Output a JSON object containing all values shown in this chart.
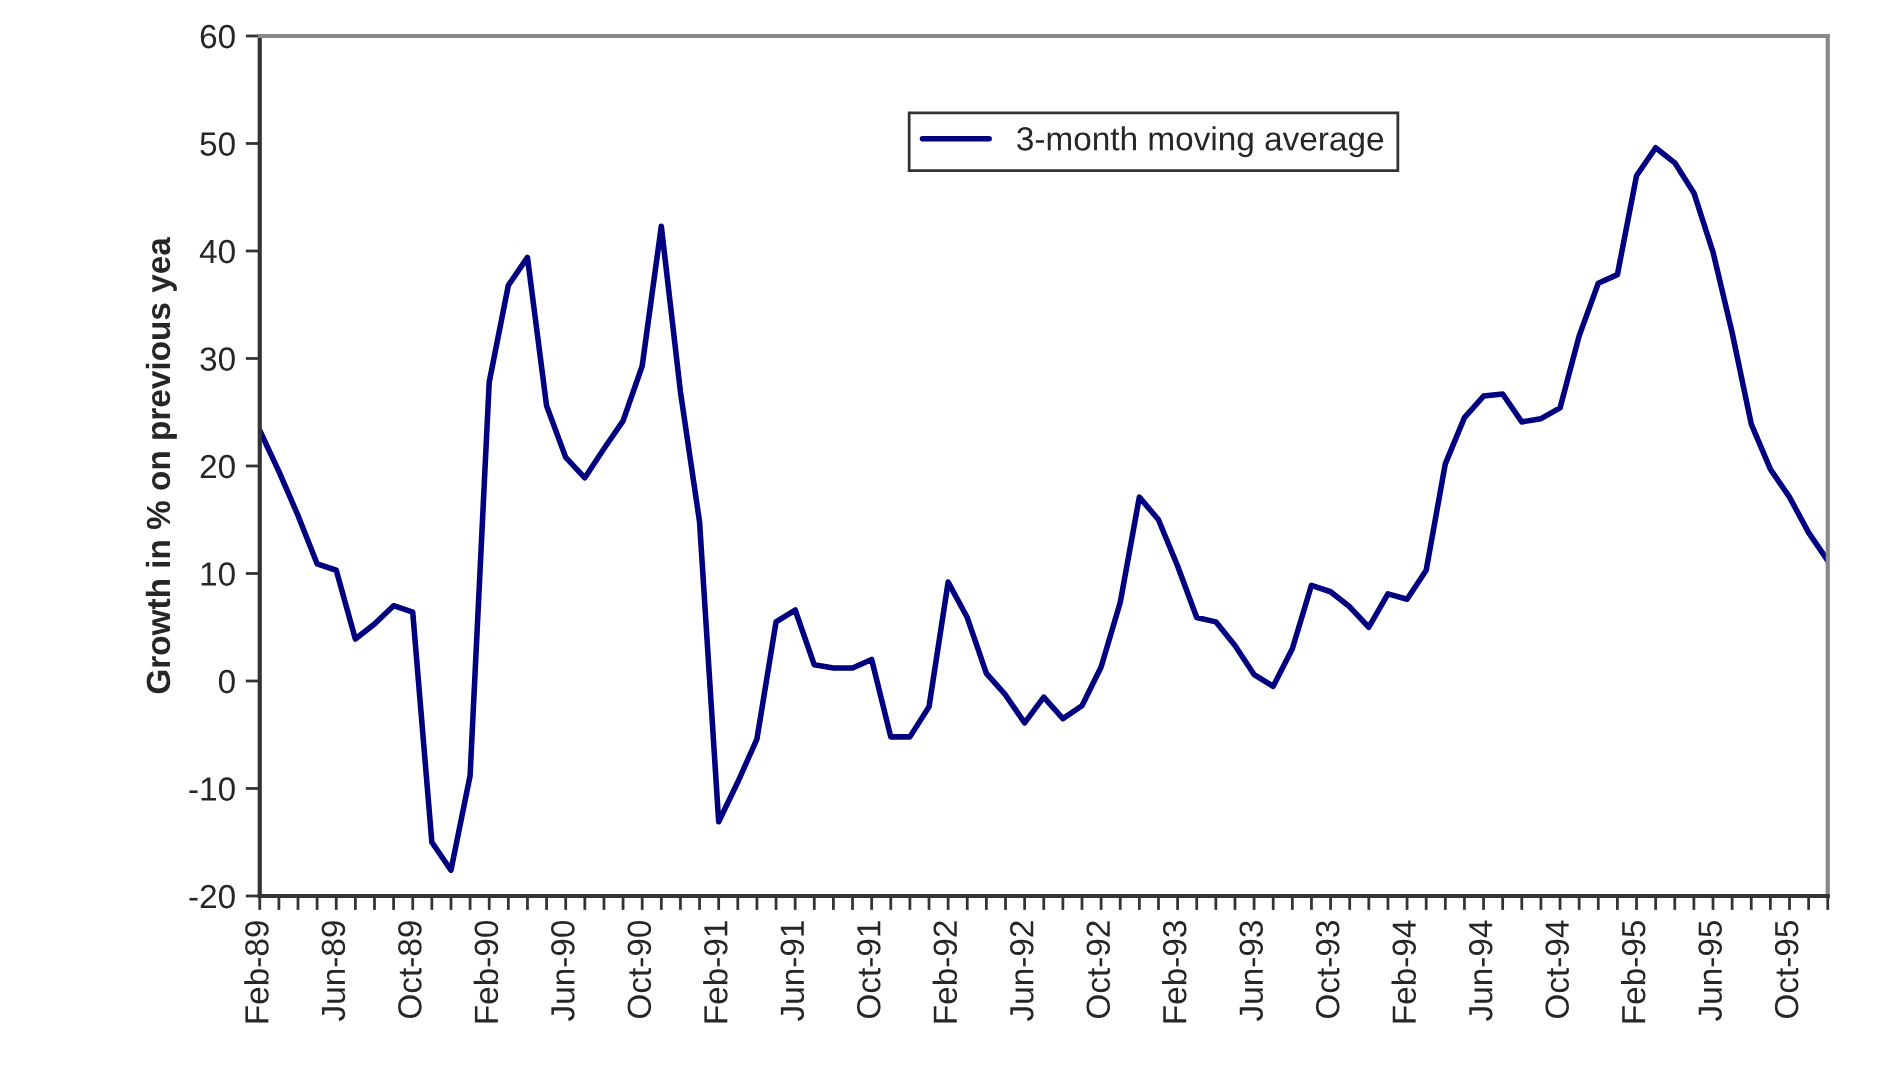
{
  "chart_data": {
    "type": "line",
    "ylabel": "Growth in % on previous yea",
    "categories": [
      "Feb-89",
      null,
      null,
      null,
      "Jun-89",
      null,
      null,
      null,
      "Oct-89",
      null,
      null,
      null,
      "Feb-90",
      null,
      null,
      null,
      "Jun-90",
      null,
      null,
      null,
      "Oct-90",
      null,
      null,
      null,
      "Feb-91",
      null,
      null,
      null,
      "Jun-91",
      null,
      null,
      null,
      "Oct-91",
      null,
      null,
      null,
      "Feb-92",
      null,
      null,
      null,
      "Jun-92",
      null,
      null,
      null,
      "Oct-92",
      null,
      null,
      null,
      "Feb-93",
      null,
      null,
      null,
      "Jun-93",
      null,
      null,
      null,
      "Oct-93",
      null,
      null,
      null,
      "Feb-94",
      null,
      null,
      null,
      "Jun-94",
      null,
      null,
      null,
      "Oct-94",
      null,
      null,
      null,
      "Feb-95",
      null,
      null,
      null,
      "Jun-95",
      null,
      null,
      null,
      "Oct-95",
      null,
      null
    ],
    "series": [
      {
        "name": "3-month moving average",
        "color": "#000080",
        "values": [
          23.3,
          19.5,
          15.4,
          10.9,
          10.3,
          3.9,
          5.3,
          7.0,
          6.4,
          -15.0,
          -17.6,
          -8.8,
          27.8,
          36.8,
          39.4,
          25.6,
          20.8,
          18.9,
          21.6,
          24.2,
          29.3,
          42.3,
          26.9,
          14.8,
          -13.1,
          -9.4,
          -5.4,
          5.5,
          6.6,
          1.5,
          1.2,
          1.2,
          2.0,
          -5.2,
          -5.2,
          -2.4,
          9.2,
          5.9,
          0.7,
          -1.3,
          -3.9,
          -1.5,
          -3.5,
          -2.3,
          1.3,
          7.3,
          17.1,
          15.0,
          10.7,
          5.9,
          5.5,
          3.3,
          0.6,
          -0.5,
          3.0,
          8.9,
          8.3,
          6.9,
          5.0,
          8.1,
          7.6,
          10.3,
          20.2,
          24.5,
          26.5,
          26.7,
          24.1,
          24.4,
          25.4,
          32.1,
          37.0,
          37.8,
          47.0,
          49.6,
          48.2,
          45.4,
          39.9,
          32.4,
          23.9,
          19.7,
          17.1,
          13.8,
          11.2
        ]
      }
    ],
    "ylim": [
      -20,
      60
    ],
    "yticks": [
      -20,
      -10,
      0,
      10,
      20,
      30,
      40,
      50,
      60
    ],
    "grid": false,
    "legend": "top",
    "marker": "none",
    "line_style": "solid"
  }
}
